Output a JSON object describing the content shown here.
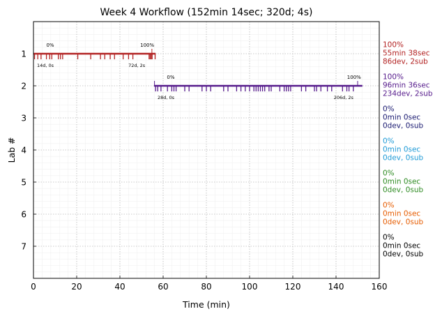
{
  "chart_data": {
    "type": "timeline",
    "title": "Week 4 Workflow (152min 14sec; 320d; 4s)",
    "xlabel": "Time (min)",
    "ylabel": "Lab #",
    "xlim": [
      0,
      160
    ],
    "ylim": [
      0,
      8
    ],
    "y_inverted": true,
    "xticks": [
      0,
      20,
      40,
      60,
      80,
      100,
      120,
      140,
      160
    ],
    "yticks": [
      1,
      2,
      3,
      4,
      5,
      6,
      7
    ],
    "grid": "dotted major and faint minor",
    "legend": "right of plot, one text block per lab",
    "labs": [
      {
        "lab": 1,
        "color": "#b22222",
        "line_x": [
          0,
          56.5
        ],
        "start_pct": "0%",
        "end_pct": "100%",
        "start_label": "14d, 0s",
        "end_label": "72d, 2s",
        "pct_marks": [
          0,
          54.8
        ],
        "events": [
          0.5,
          2,
          3.5,
          6,
          7.5,
          8.5,
          11.5,
          12.5,
          13.5,
          20.5,
          26.5,
          31,
          33,
          35.5,
          37.5,
          41.5,
          44,
          46,
          53.5,
          54,
          54.5,
          54.9,
          56.3
        ],
        "summary": [
          "100%",
          "55min 38sec",
          "86dev, 2sub"
        ]
      },
      {
        "lab": 2,
        "color": "#551a8b",
        "line_x": [
          55.8,
          152.2
        ],
        "start_pct": "0%",
        "end_pct": "100%",
        "start_label": "28d, 0s",
        "end_label": "206d, 2s",
        "pct_marks": [
          56,
          150
        ],
        "events": [
          56.5,
          57.5,
          59,
          62,
          64,
          65,
          66,
          70,
          72,
          78,
          80,
          82,
          88,
          90,
          94,
          96,
          98,
          100,
          102,
          103,
          104,
          105,
          106,
          107,
          109,
          110,
          114,
          116,
          117,
          118,
          119,
          124,
          126,
          130,
          131,
          133,
          136,
          138,
          143,
          145,
          146,
          148
        ],
        "summary": [
          "100%",
          "96min 36sec",
          "234dev, 2sub"
        ]
      },
      {
        "lab": 3,
        "color": "#191970",
        "summary": [
          "0%",
          "0min 0sec",
          "0dev, 0sub"
        ]
      },
      {
        "lab": 4,
        "color": "#1e9ad6",
        "summary": [
          "0%",
          "0min 0sec",
          "0dev, 0sub"
        ]
      },
      {
        "lab": 5,
        "color": "#2e8b22",
        "summary": [
          "0%",
          "0min 0sec",
          "0dev, 0sub"
        ]
      },
      {
        "lab": 6,
        "color": "#e65c00",
        "summary": [
          "0%",
          "0min 0sec",
          "0dev, 0sub"
        ]
      },
      {
        "lab": 7,
        "color": "#000000",
        "summary": [
          "0%",
          "0min 0sec",
          "0dev, 0sub"
        ]
      }
    ]
  }
}
